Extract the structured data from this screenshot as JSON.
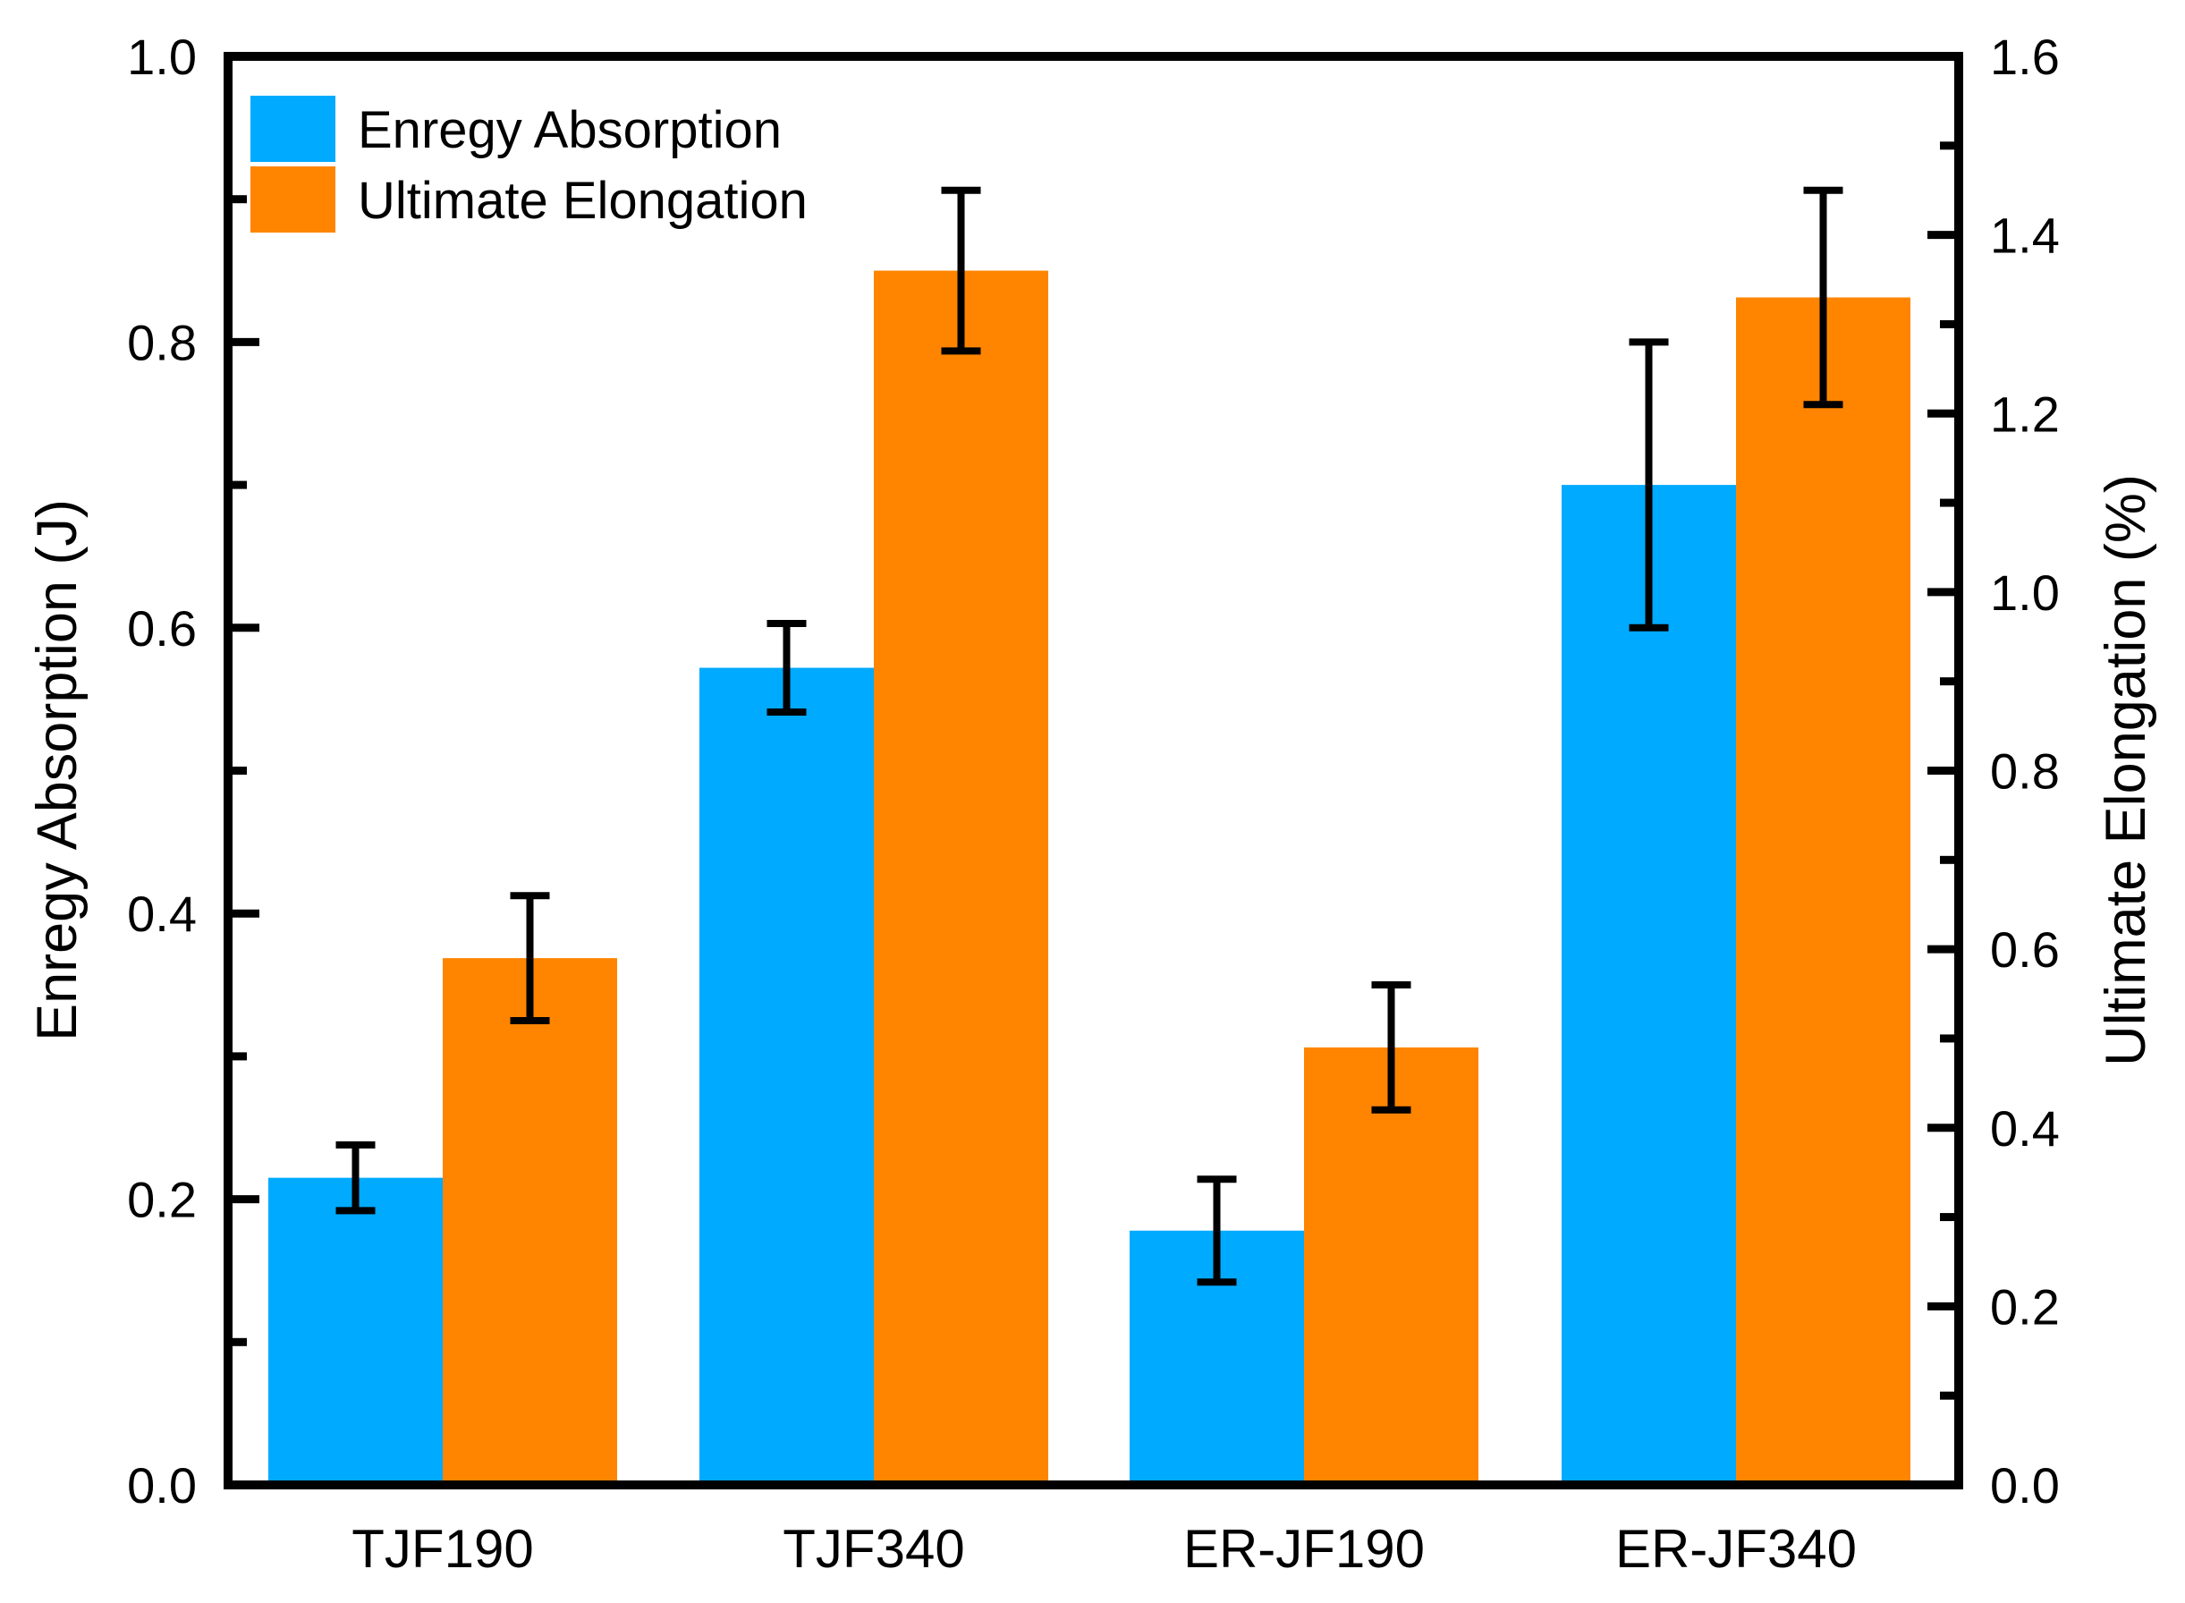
{
  "chart_data": {
    "type": "bar",
    "categories": [
      "TJF190",
      "TJF340",
      "ER-JF190",
      "ER-JF340"
    ],
    "series": [
      {
        "name": "Enregy Absorption",
        "axis": "left",
        "color": "#00AAFF",
        "values": [
          0.215,
          0.572,
          0.178,
          0.7
        ],
        "errors": [
          0.023,
          0.031,
          0.036,
          0.1
        ]
      },
      {
        "name": "Ultimate Elongation",
        "axis": "right",
        "color": "#FF8500",
        "values": [
          0.59,
          1.36,
          0.49,
          1.33
        ],
        "errors": [
          0.07,
          0.09,
          0.07,
          0.12
        ]
      }
    ],
    "left_axis": {
      "label": "Enregy Absorption (J)",
      "min": 0.0,
      "max": 1.0,
      "major_step": 0.2,
      "minor_step": 0.1,
      "tick_labels": [
        "0.0",
        "0.2",
        "0.4",
        "0.6",
        "0.8",
        "1.0"
      ]
    },
    "right_axis": {
      "label": "Ultimate Elongation (%)",
      "min": 0.0,
      "max": 1.6,
      "major_step": 0.2,
      "minor_step": 0.1,
      "tick_labels": [
        "0.0",
        "0.2",
        "0.4",
        "0.6",
        "0.8",
        "1.0",
        "1.2",
        "1.4",
        "1.6"
      ]
    },
    "legend": {
      "position": "top-left",
      "entries": [
        {
          "label": "Enregy Absorption",
          "color": "#00AAFF"
        },
        {
          "label": "Ultimate Elongation",
          "color": "#FF8500"
        }
      ]
    },
    "grid": false,
    "error_bars": true,
    "frame_color": "#000000",
    "background_color": "#FFFFFF"
  }
}
